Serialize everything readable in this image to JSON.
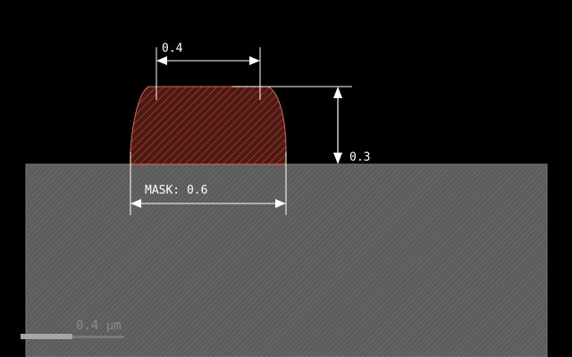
{
  "dimensions": {
    "top_width": "0.4",
    "height": "0.3",
    "mask": "MASK: 0.6"
  },
  "scale_bar": {
    "label": "0.4 µm",
    "length_um": 0.4
  },
  "colors": {
    "background": "#000000",
    "substrate": "#5c5c5c",
    "substrate_hatch": "#6e6e6e",
    "feature_fill": "#4a1a14",
    "feature_hatch": "#b83a26",
    "feature_outline": "#d06a5a",
    "dimension_lines": "#ffffff",
    "scale_bar": "#a8a8a8"
  }
}
